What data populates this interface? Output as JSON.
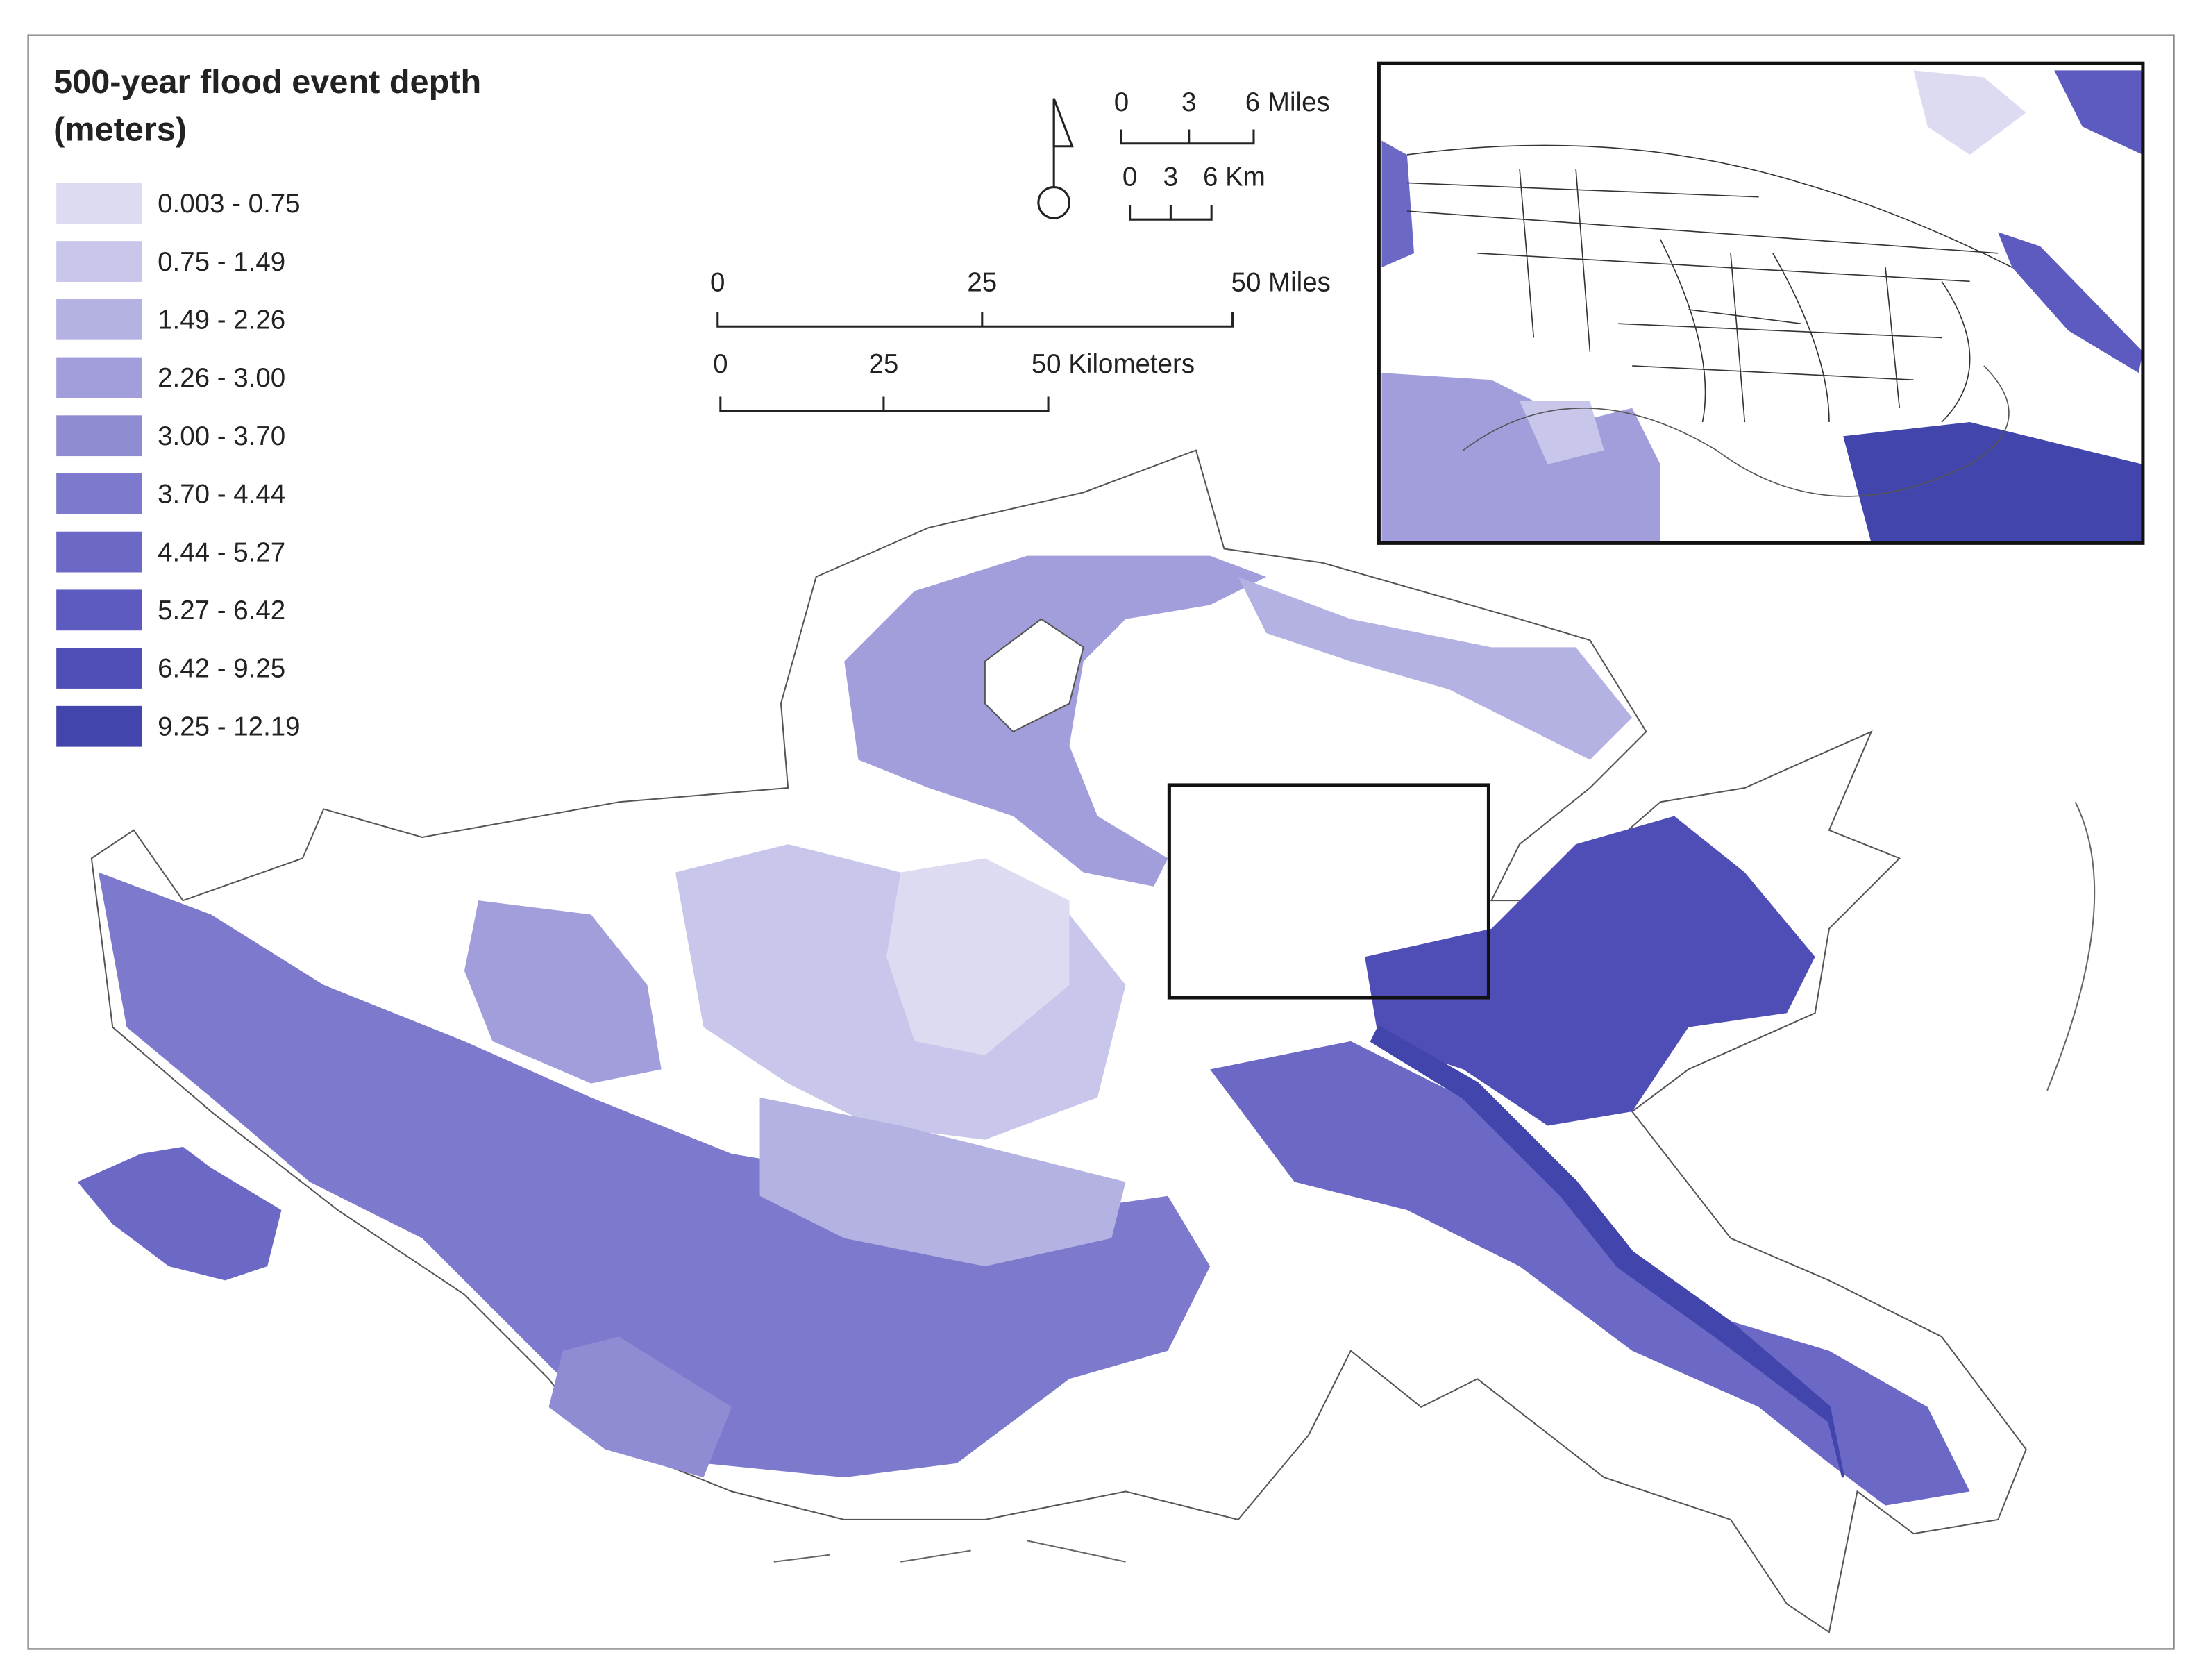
{
  "legend": {
    "title_lines": [
      "500-year flood event depth",
      "(meters)"
    ],
    "items": [
      {
        "label": "0.003 - 0.75",
        "color": "#dcdbf1"
      },
      {
        "label": "0.75 - 1.49",
        "color": "#c8c6ea"
      },
      {
        "label": "1.49 - 2.26",
        "color": "#b4b2e2"
      },
      {
        "label": "2.26 - 3.00",
        "color": "#a19edb"
      },
      {
        "label": "3.00 - 3.70",
        "color": "#8f8cd4"
      },
      {
        "label": "3.70 - 4.44",
        "color": "#7d7acd"
      },
      {
        "label": "4.44 - 5.27",
        "color": "#6c69c6"
      },
      {
        "label": "5.27 - 6.42",
        "color": "#5d5bbf"
      },
      {
        "label": "6.42 - 9.25",
        "color": "#4f4db6"
      },
      {
        "label": "9.25 - 12.19",
        "color": "#4245ab"
      }
    ]
  },
  "scale_bars": {
    "small_miles": [
      "0",
      "3",
      "6 Miles"
    ],
    "small_km": [
      "0",
      "3",
      "6 Km"
    ],
    "miles": [
      "0",
      "25",
      "50 Miles"
    ],
    "km": [
      "0",
      "25",
      "50 Kilometers"
    ]
  }
}
